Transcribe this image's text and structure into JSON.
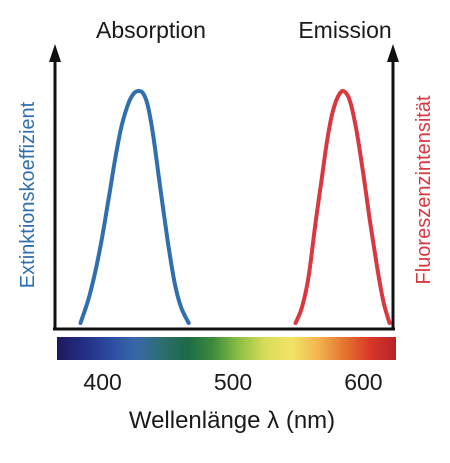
{
  "chart_data": {
    "type": "line",
    "title": "",
    "xlabel": "Wellenlänge λ (nm)",
    "y_left_label": "Extinktionskoeffizient",
    "y_right_label": "Fluoreszenzintensität",
    "x_ticks": [
      400,
      500,
      600
    ],
    "xlim": [
      365,
      625
    ],
    "ylim": [
      0,
      1
    ],
    "grid": false,
    "series": [
      {
        "name": "Absorption",
        "color": "#2f6fae",
        "axis": "left",
        "x": [
          383,
          390,
          398,
          405,
          410,
          415,
          420,
          424,
          428,
          431,
          434,
          437,
          440,
          445,
          450,
          455,
          460,
          466
        ],
        "y": [
          0.0,
          0.12,
          0.32,
          0.55,
          0.72,
          0.86,
          0.95,
          0.99,
          1.0,
          0.99,
          0.95,
          0.87,
          0.76,
          0.55,
          0.35,
          0.18,
          0.07,
          0.0
        ]
      },
      {
        "name": "Emission",
        "color": "#d8383f",
        "axis": "right",
        "x": [
          548,
          553,
          558,
          563,
          568,
          572,
          576,
          580,
          584,
          588,
          591,
          595,
          600,
          605,
          610,
          615,
          620
        ],
        "y": [
          0.0,
          0.07,
          0.2,
          0.42,
          0.62,
          0.78,
          0.9,
          0.97,
          1.0,
          0.98,
          0.93,
          0.82,
          0.64,
          0.44,
          0.26,
          0.1,
          0.0
        ]
      }
    ],
    "color_bar": {
      "stops": [
        "#1e1a5e",
        "#242d84",
        "#2b4aa0",
        "#3867a8",
        "#2e6e72",
        "#1c6a45",
        "#3f8c3c",
        "#8cc044",
        "#d8dc5a",
        "#f2e466",
        "#f2b550",
        "#e5762f",
        "#d8382a",
        "#b8222a"
      ]
    }
  }
}
